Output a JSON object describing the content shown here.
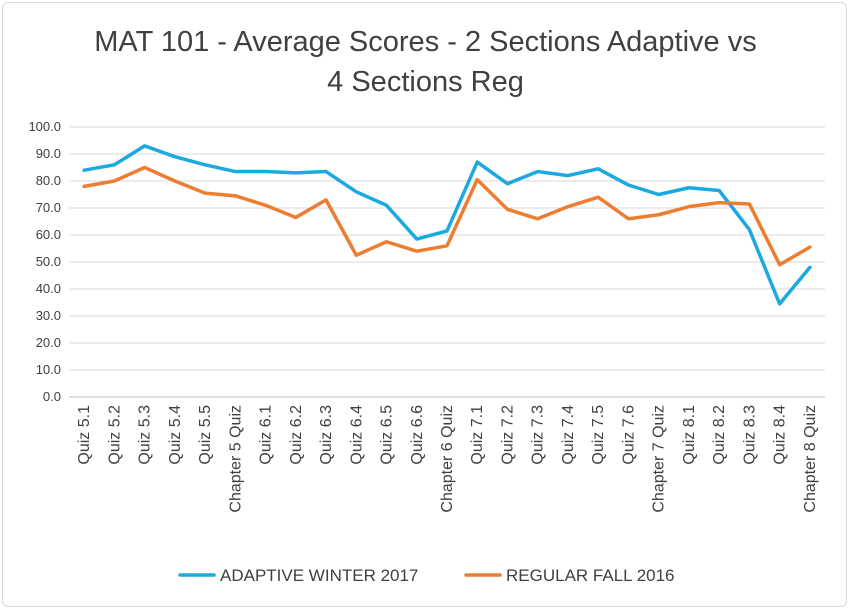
{
  "chart_data": {
    "type": "line",
    "title": [
      "MAT 101 - Average Scores - 2 Sections Adaptive vs",
      "4 Sections Reg"
    ],
    "categories": [
      "Quiz 5.1",
      "Quiz 5.2",
      "Quiz 5.3",
      "Quiz 5.4",
      "Quiz 5.5",
      "Chapter 5 Quiz",
      "Quiz 6.1",
      "Quiz 6.2",
      "Quiz 6.3",
      "Quiz 6.4",
      "Quiz 6.5",
      "Quiz 6.6",
      "Chapter 6 Quiz",
      "Quiz 7.1",
      "Quiz 7.2",
      "Quiz 7.3",
      "Quiz 7.4",
      "Quiz 7.5",
      "Quiz 7.6",
      "Chapter 7 Quiz",
      "Quiz 8.1",
      "Quiz 8.2",
      "Quiz 8.3",
      "Quiz 8.4",
      "Chapter 8 Quiz"
    ],
    "series": [
      {
        "name": "ADAPTIVE WINTER 2017",
        "color": "#1aa9e0",
        "values": [
          84.0,
          86.0,
          93.0,
          89.0,
          86.0,
          83.5,
          83.5,
          83.0,
          83.5,
          76.0,
          71.0,
          58.5,
          61.5,
          87.0,
          79.0,
          83.5,
          82.0,
          84.5,
          78.5,
          75.0,
          77.5,
          76.5,
          62.0,
          34.5,
          48.0
        ]
      },
      {
        "name": "REGULAR FALL 2016",
        "color": "#ed7d31",
        "values": [
          78.0,
          80.0,
          85.0,
          80.0,
          75.5,
          74.5,
          71.0,
          66.5,
          73.0,
          52.5,
          57.5,
          54.0,
          56.0,
          80.5,
          69.5,
          66.0,
          70.5,
          74.0,
          66.0,
          67.5,
          70.5,
          72.0,
          71.5,
          49.0,
          55.5
        ]
      }
    ],
    "y_ticks": [
      "0.0",
      "10.0",
      "20.0",
      "30.0",
      "40.0",
      "50.0",
      "60.0",
      "70.0",
      "80.0",
      "90.0",
      "100.0"
    ],
    "ylim": [
      0,
      100
    ],
    "grid": true,
    "legend_position": "bottom"
  }
}
